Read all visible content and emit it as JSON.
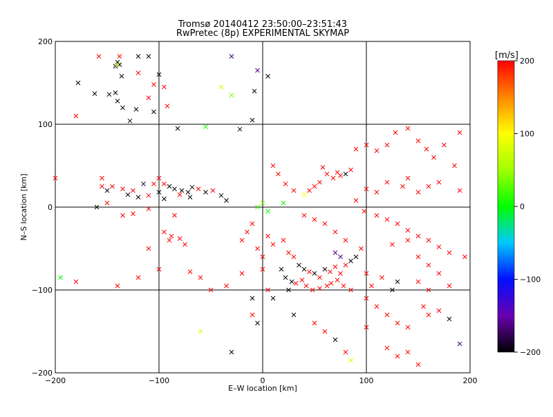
{
  "chart_data": {
    "type": "scatter",
    "title": "Tromsø 20140412 23:50:00–23:51:43",
    "subtitle": "RwPretec (8p) EXPERIMENTAL SKYMAP",
    "xlabel": "E–W location [km]",
    "ylabel": "N–S location [km]",
    "xlim": [
      -200,
      200
    ],
    "ylim": [
      -200,
      200
    ],
    "x_ticks": [
      "−200",
      "−100",
      "0",
      "100",
      "200"
    ],
    "y_ticks": [
      "−200",
      "−100",
      "0",
      "100",
      "200"
    ],
    "grid": true,
    "colorbar": {
      "label": "[m/s]",
      "range": [
        -200,
        200
      ],
      "ticks": [
        "−200",
        "−100",
        "0",
        "100",
        "200"
      ]
    },
    "series": [
      {
        "marker": "x",
        "points": [
          [
            -178,
            150,
            -200
          ],
          [
            -162,
            137,
            -200
          ],
          [
            -148,
            136,
            -200
          ],
          [
            -142,
            138,
            -200
          ],
          [
            -140,
            128,
            -200
          ],
          [
            -158,
            182,
            200
          ],
          [
            -140,
            175,
            -200
          ],
          [
            -142,
            170,
            -200
          ],
          [
            -120,
            182,
            -200
          ],
          [
            -110,
            182,
            -200
          ],
          [
            -100,
            160,
            -200
          ],
          [
            -138,
            182,
            200
          ],
          [
            -138,
            172,
            -200
          ],
          [
            -136,
            158,
            -200
          ],
          [
            -120,
            162,
            200
          ],
          [
            -95,
            145,
            200
          ],
          [
            -110,
            132,
            200
          ],
          [
            -128,
            104,
            -200
          ],
          [
            -105,
            115,
            -200
          ],
          [
            -122,
            118,
            -200
          ],
          [
            -140,
            172,
            60
          ],
          [
            -105,
            148,
            200
          ],
          [
            -135,
            120,
            -200
          ],
          [
            -92,
            122,
            200
          ],
          [
            -82,
            95,
            -200
          ],
          [
            -55,
            97,
            10
          ],
          [
            -22,
            94,
            -200
          ],
          [
            -10,
            105,
            -200
          ],
          [
            -30,
            182,
            -170
          ],
          [
            -5,
            165,
            -160
          ],
          [
            -8,
            140,
            -200
          ],
          [
            5,
            158,
            -200
          ],
          [
            -30,
            135,
            40
          ],
          [
            -40,
            145,
            80
          ],
          [
            -180,
            110,
            200
          ],
          [
            -155,
            35,
            200
          ],
          [
            -155,
            25,
            200
          ],
          [
            -150,
            20,
            -200
          ],
          [
            -145,
            25,
            200
          ],
          [
            -135,
            22,
            200
          ],
          [
            -125,
            20,
            200
          ],
          [
            -115,
            28,
            -180
          ],
          [
            -105,
            28,
            200
          ],
          [
            -100,
            35,
            200
          ],
          [
            -95,
            28,
            200
          ],
          [
            -90,
            25,
            -200
          ],
          [
            -85,
            22,
            -200
          ],
          [
            -78,
            20,
            -200
          ],
          [
            -72,
            18,
            -200
          ],
          [
            -68,
            24,
            -200
          ],
          [
            -62,
            22,
            200
          ],
          [
            -55,
            18,
            -200
          ],
          [
            -48,
            20,
            200
          ],
          [
            -40,
            14,
            -200
          ],
          [
            -35,
            8,
            -200
          ],
          [
            -120,
            12,
            -200
          ],
          [
            -130,
            15,
            -200
          ],
          [
            -110,
            14,
            200
          ],
          [
            -100,
            18,
            -200
          ],
          [
            -95,
            10,
            -200
          ],
          [
            -80,
            15,
            200
          ],
          [
            -70,
            12,
            -200
          ],
          [
            -200,
            35,
            200
          ],
          [
            -160,
            0,
            -200
          ],
          [
            -150,
            5,
            200
          ],
          [
            -135,
            -10,
            200
          ],
          [
            -125,
            -8,
            200
          ],
          [
            -110,
            -2,
            200
          ],
          [
            -85,
            -10,
            200
          ],
          [
            -95,
            -30,
            200
          ],
          [
            -90,
            -40,
            200
          ],
          [
            -80,
            -38,
            200
          ],
          [
            -88,
            -35,
            200
          ],
          [
            -75,
            -45,
            200
          ],
          [
            -110,
            -50,
            200
          ],
          [
            -195,
            -85,
            0
          ],
          [
            -180,
            -90,
            200
          ],
          [
            -140,
            -95,
            200
          ],
          [
            -120,
            -85,
            200
          ],
          [
            -100,
            -75,
            200
          ],
          [
            -70,
            -78,
            200
          ],
          [
            -60,
            -85,
            200
          ],
          [
            -50,
            -100,
            200
          ],
          [
            -35,
            -95,
            200
          ],
          [
            -20,
            -80,
            200
          ],
          [
            -10,
            -110,
            -200
          ],
          [
            -5,
            -140,
            -200
          ],
          [
            -10,
            -130,
            200
          ],
          [
            -30,
            -175,
            -200
          ],
          [
            -60,
            -150,
            80
          ],
          [
            10,
            50,
            200
          ],
          [
            15,
            40,
            200
          ],
          [
            22,
            28,
            200
          ],
          [
            30,
            20,
            200
          ],
          [
            40,
            15,
            100
          ],
          [
            45,
            20,
            200
          ],
          [
            50,
            25,
            200
          ],
          [
            55,
            30,
            200
          ],
          [
            62,
            40,
            200
          ],
          [
            72,
            42,
            200
          ],
          [
            80,
            40,
            -200
          ],
          [
            85,
            45,
            200
          ],
          [
            75,
            38,
            200
          ],
          [
            68,
            35,
            200
          ],
          [
            58,
            48,
            200
          ],
          [
            90,
            70,
            200
          ],
          [
            100,
            75,
            200
          ],
          [
            110,
            68,
            200
          ],
          [
            120,
            75,
            200
          ],
          [
            128,
            90,
            200
          ],
          [
            140,
            95,
            200
          ],
          [
            150,
            80,
            200
          ],
          [
            158,
            70,
            200
          ],
          [
            165,
            60,
            200
          ],
          [
            175,
            75,
            200
          ],
          [
            190,
            90,
            200
          ],
          [
            185,
            50,
            200
          ],
          [
            190,
            20,
            200
          ],
          [
            170,
            30,
            200
          ],
          [
            160,
            25,
            200
          ],
          [
            150,
            18,
            200
          ],
          [
            140,
            35,
            200
          ],
          [
            135,
            25,
            200
          ],
          [
            120,
            30,
            200
          ],
          [
            110,
            18,
            200
          ],
          [
            100,
            22,
            200
          ],
          [
            90,
            8,
            200
          ],
          [
            98,
            -5,
            200
          ],
          [
            110,
            -10,
            200
          ],
          [
            120,
            -15,
            200
          ],
          [
            130,
            -20,
            200
          ],
          [
            140,
            -28,
            200
          ],
          [
            150,
            -35,
            200
          ],
          [
            160,
            -40,
            200
          ],
          [
            170,
            -48,
            200
          ],
          [
            180,
            -55,
            200
          ],
          [
            195,
            -60,
            200
          ],
          [
            20,
            -40,
            200
          ],
          [
            25,
            -55,
            200
          ],
          [
            30,
            -60,
            200
          ],
          [
            35,
            -70,
            -200
          ],
          [
            40,
            -75,
            -200
          ],
          [
            45,
            -78,
            200
          ],
          [
            50,
            -80,
            -200
          ],
          [
            55,
            -85,
            200
          ],
          [
            60,
            -75,
            -200
          ],
          [
            65,
            -78,
            200
          ],
          [
            70,
            -72,
            200
          ],
          [
            75,
            -80,
            200
          ],
          [
            80,
            -70,
            200
          ],
          [
            85,
            -65,
            -200
          ],
          [
            90,
            -60,
            -200
          ],
          [
            95,
            -50,
            200
          ],
          [
            80,
            -40,
            200
          ],
          [
            70,
            -30,
            200
          ],
          [
            60,
            -20,
            200
          ],
          [
            50,
            -15,
            200
          ],
          [
            40,
            -10,
            200
          ],
          [
            18,
            -75,
            -200
          ],
          [
            22,
            -85,
            -200
          ],
          [
            28,
            -90,
            -200
          ],
          [
            32,
            -92,
            200
          ],
          [
            38,
            -88,
            200
          ],
          [
            42,
            -95,
            200
          ],
          [
            48,
            -100,
            200
          ],
          [
            55,
            -98,
            200
          ],
          [
            62,
            -95,
            200
          ],
          [
            66,
            -92,
            200
          ],
          [
            72,
            -88,
            200
          ],
          [
            78,
            -95,
            200
          ],
          [
            85,
            -100,
            200
          ],
          [
            70,
            -55,
            -160
          ],
          [
            75,
            -60,
            -160
          ],
          [
            25,
            -100,
            -200
          ],
          [
            10,
            -110,
            -200
          ],
          [
            100,
            -110,
            200
          ],
          [
            110,
            -120,
            200
          ],
          [
            120,
            -130,
            200
          ],
          [
            130,
            -140,
            200
          ],
          [
            140,
            -145,
            200
          ],
          [
            155,
            -120,
            200
          ],
          [
            160,
            -130,
            200
          ],
          [
            170,
            -125,
            200
          ],
          [
            180,
            -135,
            -200
          ],
          [
            190,
            -165,
            -170
          ],
          [
            130,
            -90,
            -200
          ],
          [
            125,
            -100,
            -200
          ],
          [
            115,
            -85,
            200
          ],
          [
            105,
            -95,
            200
          ],
          [
            100,
            -80,
            200
          ],
          [
            0,
            -75,
            200
          ],
          [
            5,
            -100,
            200
          ],
          [
            30,
            -130,
            -200
          ],
          [
            50,
            -140,
            200
          ],
          [
            60,
            -150,
            200
          ],
          [
            70,
            -160,
            -200
          ],
          [
            80,
            -175,
            200
          ],
          [
            85,
            -185,
            80
          ],
          [
            120,
            -170,
            200
          ],
          [
            130,
            -180,
            200
          ],
          [
            140,
            -175,
            200
          ],
          [
            150,
            -190,
            200
          ],
          [
            100,
            -145,
            200
          ],
          [
            125,
            -45,
            200
          ],
          [
            140,
            -40,
            200
          ],
          [
            150,
            -60,
            200
          ],
          [
            160,
            -70,
            200
          ],
          [
            170,
            -80,
            200
          ],
          [
            180,
            -95,
            200
          ],
          [
            160,
            -100,
            200
          ],
          [
            150,
            -90,
            200
          ],
          [
            20,
            5,
            0
          ],
          [
            -5,
            0,
            20
          ],
          [
            0,
            5,
            40
          ],
          [
            5,
            -5,
            0
          ],
          [
            -10,
            -20,
            200
          ],
          [
            -15,
            -30,
            200
          ],
          [
            -20,
            -40,
            200
          ],
          [
            -5,
            -50,
            200
          ],
          [
            0,
            -60,
            200
          ],
          [
            10,
            -45,
            200
          ],
          [
            5,
            -35,
            200
          ]
        ]
      }
    ]
  }
}
